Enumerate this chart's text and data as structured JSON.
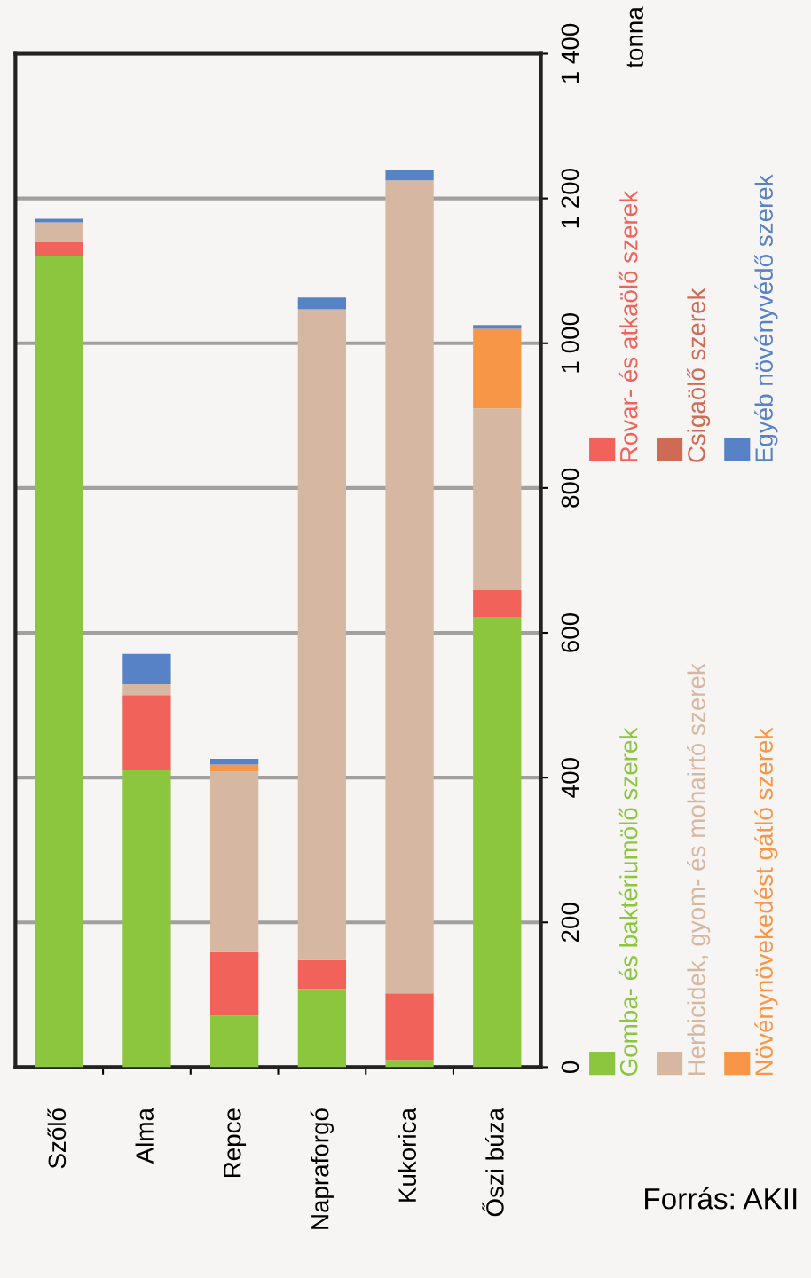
{
  "chart_data": {
    "type": "bar",
    "stacked": true,
    "ylabel": "tonna",
    "categories": [
      "Szőlő",
      "Alma",
      "Repce",
      "Napraforgó",
      "Kukorica",
      "Őszi búza"
    ],
    "series": [
      {
        "name": "Gomba- és baktériumölő szerek",
        "color": "#8cc63f",
        "values": [
          1120,
          410,
          71,
          108,
          10,
          622
        ]
      },
      {
        "name": "Rovar- és atkaölő szerek",
        "color": "#f0625a",
        "values": [
          20,
          104,
          88,
          40,
          92,
          37
        ]
      },
      {
        "name": "Herbicidek, gyom- és mohairtó szerek",
        "color": "#d6b8a2",
        "values": [
          27,
          15,
          249,
          899,
          1123,
          251
        ]
      },
      {
        "name": "Csigaölő szerek",
        "color": "#cf6b55",
        "values": [
          0,
          0,
          0,
          0,
          0,
          0
        ]
      },
      {
        "name": "Növénynövekedést gátló szerek",
        "color": "#f79646",
        "values": [
          0,
          0,
          10,
          0,
          0,
          110
        ]
      },
      {
        "name": "Egyéb növényvédő szerek",
        "color": "#5882c6",
        "values": [
          5,
          42,
          8,
          16,
          15,
          5
        ]
      }
    ],
    "ylim": [
      0,
      1400
    ],
    "yticks": [
      0,
      200,
      400,
      600,
      800,
      {
        "value": 1000,
        "label": "1 000"
      },
      {
        "value": 1200,
        "label": "1 200"
      },
      {
        "value": 1400,
        "label": "1 400"
      }
    ],
    "grid": "y",
    "legend": "right",
    "annotations": [
      "Forrás: AKII"
    ]
  }
}
